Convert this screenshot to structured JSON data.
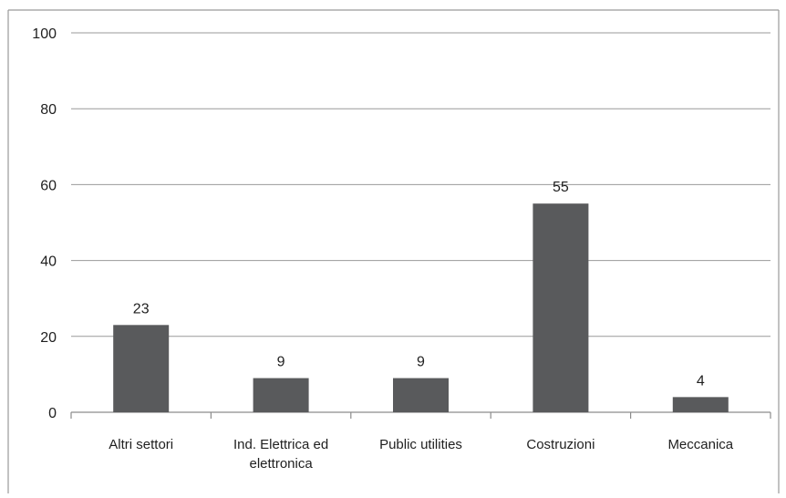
{
  "chart_data": {
    "type": "bar",
    "title": "",
    "xlabel": "",
    "ylabel": "",
    "categories": [
      [
        "Altri settori"
      ],
      [
        "Ind. Elettrica ed",
        "elettronica"
      ],
      [
        "Public utilities"
      ],
      [
        "Costruzioni"
      ],
      [
        "Meccanica"
      ]
    ],
    "values": [
      23,
      9,
      9,
      55,
      4
    ],
    "data_labels": [
      "23",
      "9",
      "9",
      "55",
      "4"
    ],
    "ylim": [
      0,
      100
    ],
    "yticks": [
      "0",
      "20",
      "40",
      "60",
      "80",
      "100"
    ],
    "grid": true,
    "legend": "none",
    "colors": {
      "bar": "#595a5c",
      "grid": "#9a9a9a",
      "axis": "#8c8c8c",
      "text": "#1f1f1f",
      "border": "#9a9a9a"
    }
  }
}
